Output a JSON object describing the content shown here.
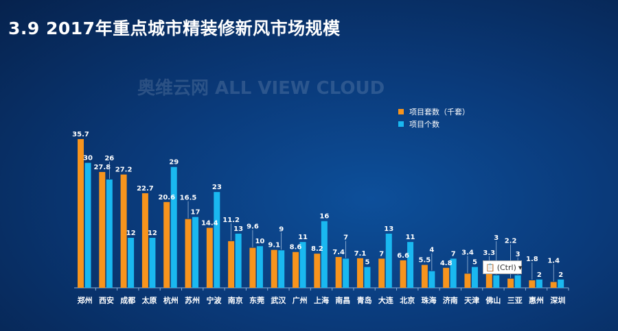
{
  "title": "3.9  2017年重点城市精装修新风市场规模",
  "watermark": "奥维云网 ALL VIEW CLOUD",
  "paste_options": {
    "label": "(Ctrl)",
    "icon": "clipboard-icon"
  },
  "chart_data": {
    "type": "bar",
    "title": "3.9  2017年重点城市精装修新风市场规模",
    "legend_position": "top-right",
    "grid": false,
    "categories": [
      "郑州",
      "西安",
      "成都",
      "太原",
      "杭州",
      "苏州",
      "宁波",
      "南京",
      "东莞",
      "武汉",
      "广州",
      "上海",
      "南昌",
      "青岛",
      "大连",
      "北京",
      "珠海",
      "济南",
      "天津",
      "佛山",
      "三亚",
      "惠州",
      "深圳"
    ],
    "series": [
      {
        "name": "项目套数（千套）",
        "color": "#f7941d",
        "values": [
          35.7,
          27.8,
          27.2,
          22.7,
          20.6,
          16.5,
          14.4,
          11.2,
          9.6,
          9.1,
          8.6,
          8.2,
          7.4,
          7.1,
          7.0,
          6.6,
          5.5,
          4.8,
          3.4,
          3.3,
          2.2,
          1.8,
          1.4
        ]
      },
      {
        "name": "项目个数",
        "color": "#1ab8f0",
        "values": [
          30,
          26,
          12,
          12,
          29,
          17,
          23,
          13,
          10,
          9,
          11,
          16,
          7,
          5,
          13,
          11,
          4,
          7,
          5,
          3,
          3,
          2,
          2
        ]
      }
    ]
  }
}
